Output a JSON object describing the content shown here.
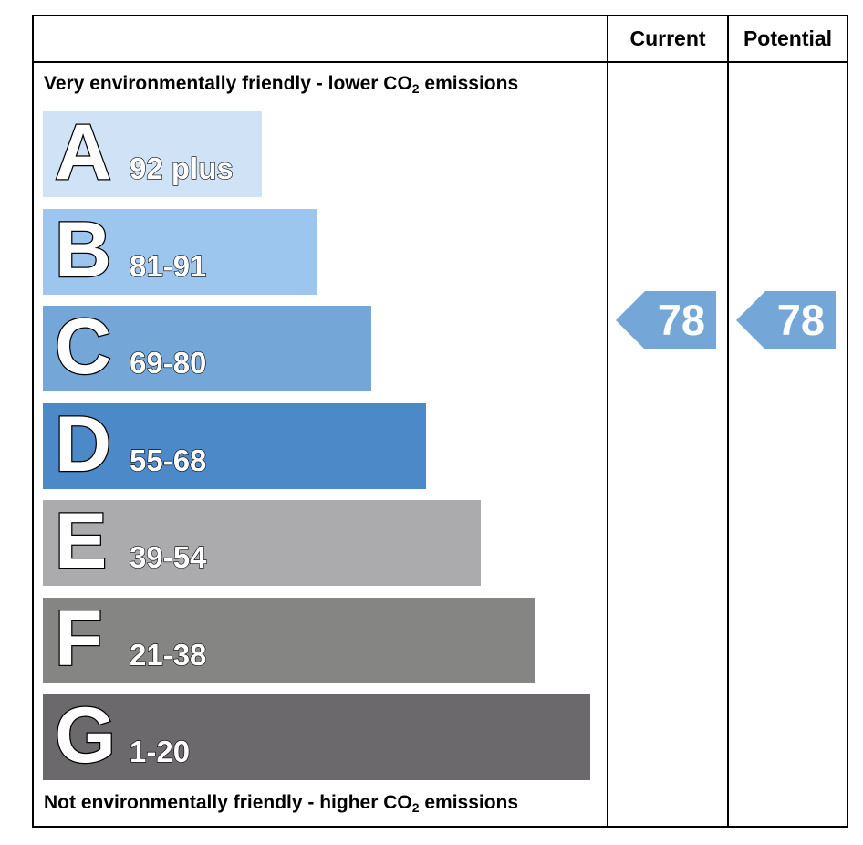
{
  "header": {
    "current_label": "Current",
    "potential_label": "Potential"
  },
  "captions": {
    "top_text": "Very environmentally friendly - lower CO",
    "top_sub": "2",
    "top_suffix": " emissions",
    "bottom_text": "Not environmentally friendly - higher CO",
    "bottom_sub": "2",
    "bottom_suffix": " emissions"
  },
  "chart_data": {
    "type": "bar",
    "categories": [
      "A",
      "B",
      "C",
      "D",
      "E",
      "F",
      "G"
    ],
    "ranges": [
      "92 plus",
      "81-91",
      "69-80",
      "55-68",
      "39-54",
      "21-38",
      "1-20"
    ],
    "colors": [
      "#cfe2f6",
      "#9dc6ee",
      "#74a6d8",
      "#4c89c8",
      "#abaaad",
      "#858684",
      "#6b696b"
    ],
    "current": {
      "value": "78",
      "band": "C",
      "color": "#74a6d8"
    },
    "potential": {
      "value": "78",
      "band": "C",
      "color": "#74a6d8"
    }
  }
}
